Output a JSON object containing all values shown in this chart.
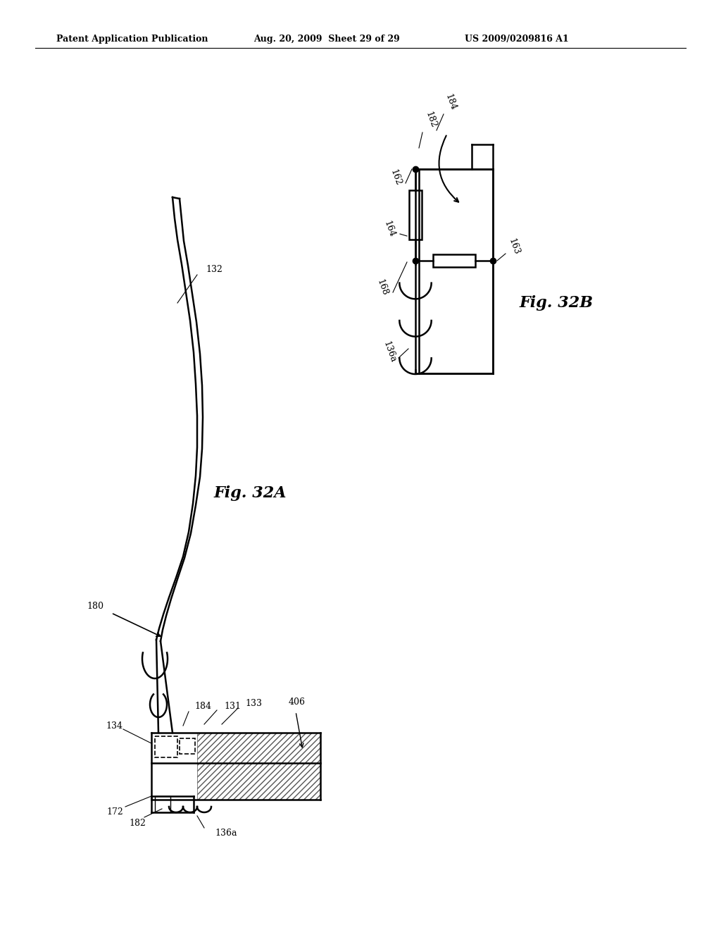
{
  "bg_color": "#ffffff",
  "header_text": "Patent Application Publication",
  "header_date": "Aug. 20, 2009  Sheet 29 of 29",
  "header_patent": "US 2009/0209816 A1",
  "fig32a_label": "Fig. 32A",
  "fig32b_label": "Fig. 32B"
}
